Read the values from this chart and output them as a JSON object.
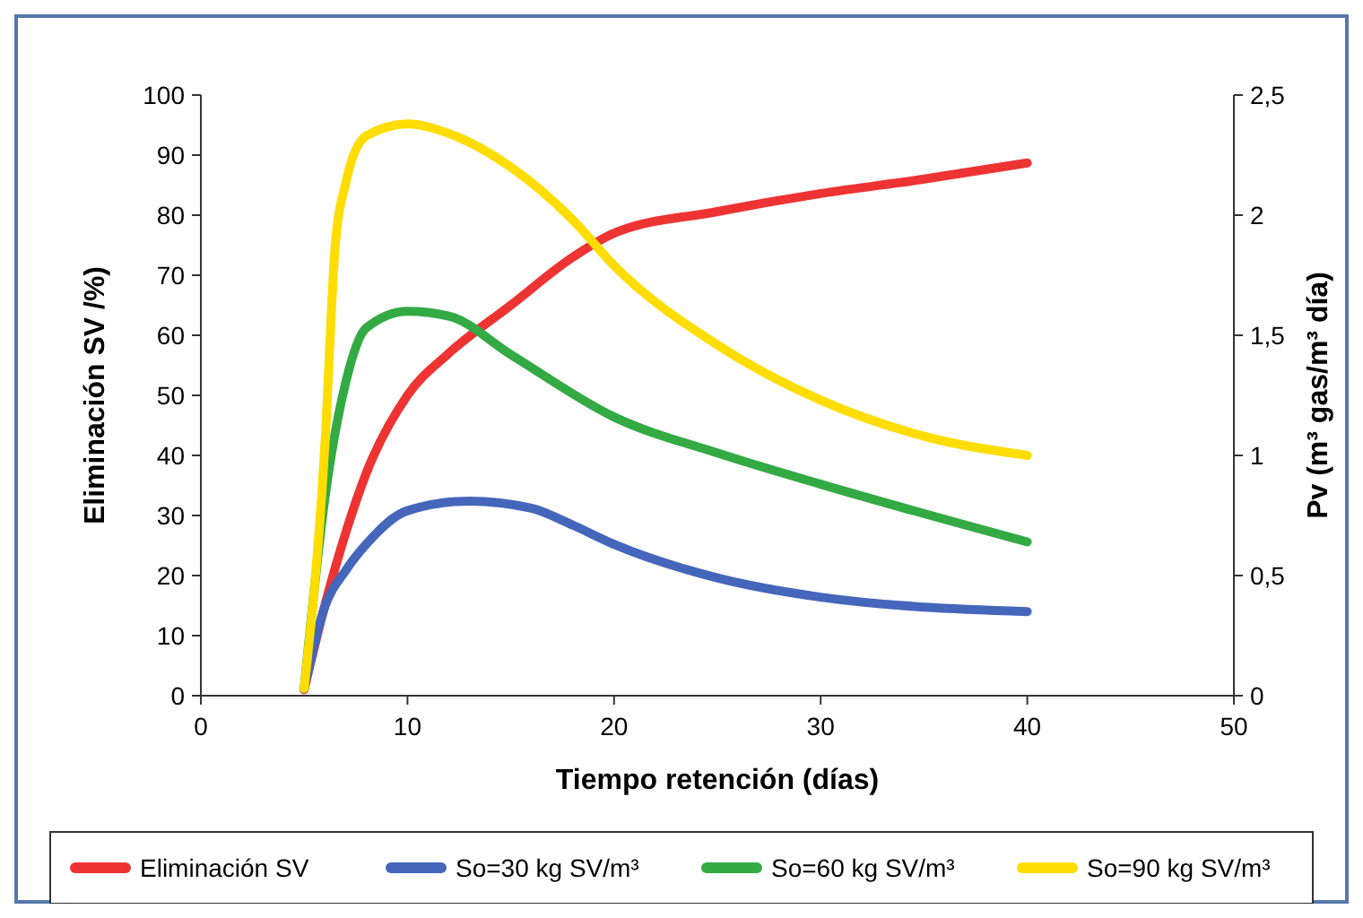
{
  "chart_data": {
    "type": "line",
    "xlabel": "Tiempo retención (días)",
    "ylabel": "Eliminación SV /%)",
    "y2label": "Pv (m³ gas/m³ día)",
    "xlim": [
      0,
      50
    ],
    "xticks": [
      0,
      10,
      20,
      30,
      40,
      50
    ],
    "ylim": [
      0,
      100
    ],
    "yticks": [
      0,
      10,
      20,
      30,
      40,
      50,
      60,
      70,
      80,
      90,
      100
    ],
    "y2lim": [
      0,
      2.5
    ],
    "y2ticks": [
      0,
      {
        "value": 0.5,
        "label": "0,5"
      },
      1,
      {
        "value": 1.5,
        "label": "1,5"
      },
      2,
      {
        "value": 2.5,
        "label": "2,5"
      }
    ],
    "grid": false,
    "legend": "bottom",
    "marker": "none",
    "line_style": "solid",
    "series": [
      {
        "name": "Eliminación SV",
        "color": "#ee3333",
        "x": [
          5,
          6,
          7,
          8,
          10,
          12,
          15,
          18,
          20,
          25,
          30,
          35,
          40
        ],
        "values": [
          1,
          15,
          27,
          37,
          50,
          57,
          65,
          73,
          77,
          80.6,
          83.6,
          86,
          88.7
        ]
      },
      {
        "name": "So=30 kg SV/m³",
        "color": "#4466bb",
        "axis": "y2",
        "x": [
          5,
          6,
          7,
          8,
          10,
          13,
          16,
          18,
          20,
          25,
          30,
          40
        ],
        "values": [
          0.03,
          0.37,
          0.52,
          0.63,
          0.77,
          0.81,
          0.78,
          0.71,
          0.63,
          0.49,
          0.41,
          0.35
        ]
      },
      {
        "name": "So=60 kg SV/m³",
        "color": "#33aa44",
        "axis": "y2",
        "x": [
          5,
          6,
          7,
          8,
          10,
          12,
          15,
          20,
          25,
          30,
          40
        ],
        "values": [
          0.03,
          0.82,
          1.3,
          1.53,
          1.6,
          1.58,
          1.42,
          1.16,
          1.01,
          0.88,
          0.64
        ]
      },
      {
        "name": "So=90 kg SV/m³",
        "color": "#ffdd00",
        "axis": "y2",
        "x": [
          5,
          6,
          6.5,
          7,
          8,
          10,
          12,
          15,
          18,
          20,
          25,
          30,
          35,
          40
        ],
        "values": [
          0.03,
          1.04,
          1.87,
          2.13,
          2.33,
          2.38,
          2.34,
          2.2,
          1.98,
          1.79,
          1.46,
          1.23,
          1.08,
          1.0
        ]
      }
    ]
  }
}
